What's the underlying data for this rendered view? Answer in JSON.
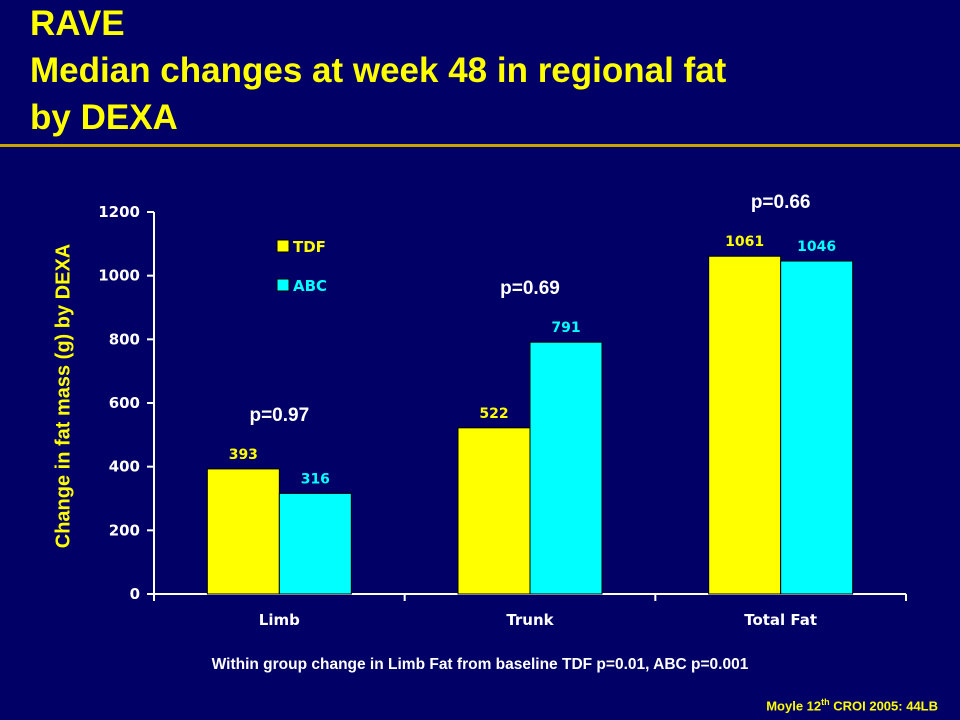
{
  "slide": {
    "title_line1": "RAVE",
    "title_line2": "Median changes at week 48 in regional fat",
    "title_line3": "by DEXA",
    "footnote": "Within group change in Limb Fat from baseline TDF p=0.01, ABC p=0.001",
    "citation_pre": "Moyle 12",
    "citation_sup": "th",
    "citation_post": " CROI 2005: 44LB"
  },
  "chart_data": {
    "type": "bar",
    "title": "",
    "xlabel": "",
    "ylabel": "Change in fat mass (g) by DEXA",
    "ylim": [
      0,
      1200
    ],
    "yticks": [
      0,
      200,
      400,
      600,
      800,
      1000,
      1200
    ],
    "categories": [
      "Limb",
      "Trunk",
      "Total Fat"
    ],
    "series": [
      {
        "name": "TDF",
        "values": [
          393,
          522,
          1061
        ],
        "color": "#ffff00"
      },
      {
        "name": "ABC",
        "values": [
          316,
          791,
          1046
        ],
        "color": "#00ffff"
      }
    ],
    "p_values": [
      "p=0.97",
      "p=0.69",
      "p=0.66"
    ],
    "legend_position": "top-left",
    "grid": false
  }
}
